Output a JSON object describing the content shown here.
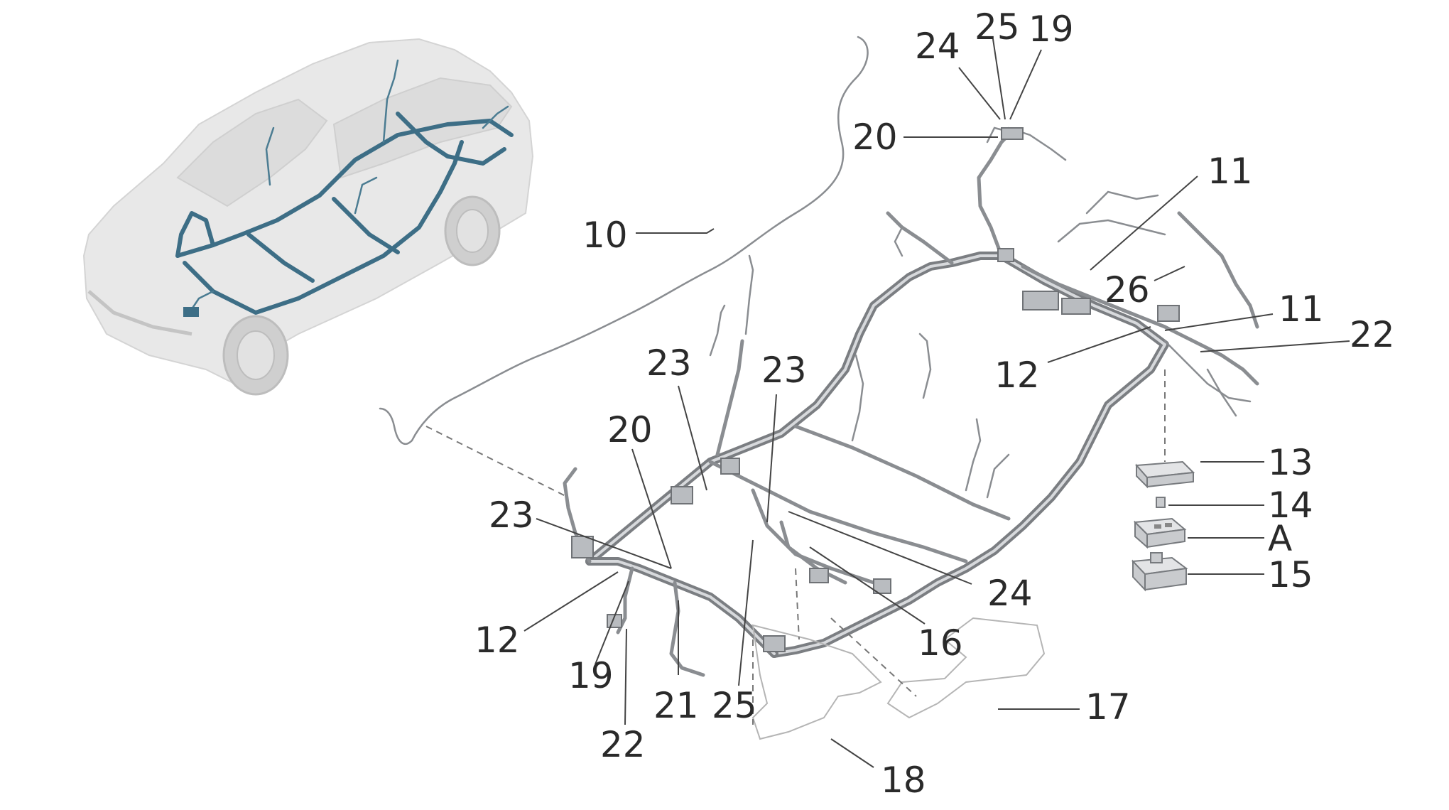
{
  "callouts": [
    {
      "id": "c10",
      "text": "10"
    },
    {
      "id": "c24t",
      "text": "24"
    },
    {
      "id": "c25t",
      "text": "25"
    },
    {
      "id": "c19t",
      "text": "19"
    },
    {
      "id": "c20t",
      "text": "20"
    },
    {
      "id": "c11a",
      "text": "11"
    },
    {
      "id": "c26",
      "text": "26"
    },
    {
      "id": "c11b",
      "text": "11"
    },
    {
      "id": "c22r",
      "text": "22"
    },
    {
      "id": "c12r",
      "text": "12"
    },
    {
      "id": "c23a",
      "text": "23"
    },
    {
      "id": "c23b",
      "text": "23"
    },
    {
      "id": "c20l",
      "text": "20"
    },
    {
      "id": "c23c",
      "text": "23"
    },
    {
      "id": "c13",
      "text": "13"
    },
    {
      "id": "c14",
      "text": "14"
    },
    {
      "id": "cA",
      "text": "A"
    },
    {
      "id": "c15",
      "text": "15"
    },
    {
      "id": "c24b",
      "text": "24"
    },
    {
      "id": "c12l",
      "text": "12"
    },
    {
      "id": "c16",
      "text": "16"
    },
    {
      "id": "c19b",
      "text": "19"
    },
    {
      "id": "c21",
      "text": "21"
    },
    {
      "id": "c25b",
      "text": "25"
    },
    {
      "id": "c17",
      "text": "17"
    },
    {
      "id": "c22b",
      "text": "22"
    },
    {
      "id": "c18",
      "text": "18"
    }
  ],
  "colors": {
    "harness": "#7b7e82",
    "car_body": "#e8e8e8",
    "car_harness": "#3d6e86",
    "labels": "#2a2a2a"
  }
}
